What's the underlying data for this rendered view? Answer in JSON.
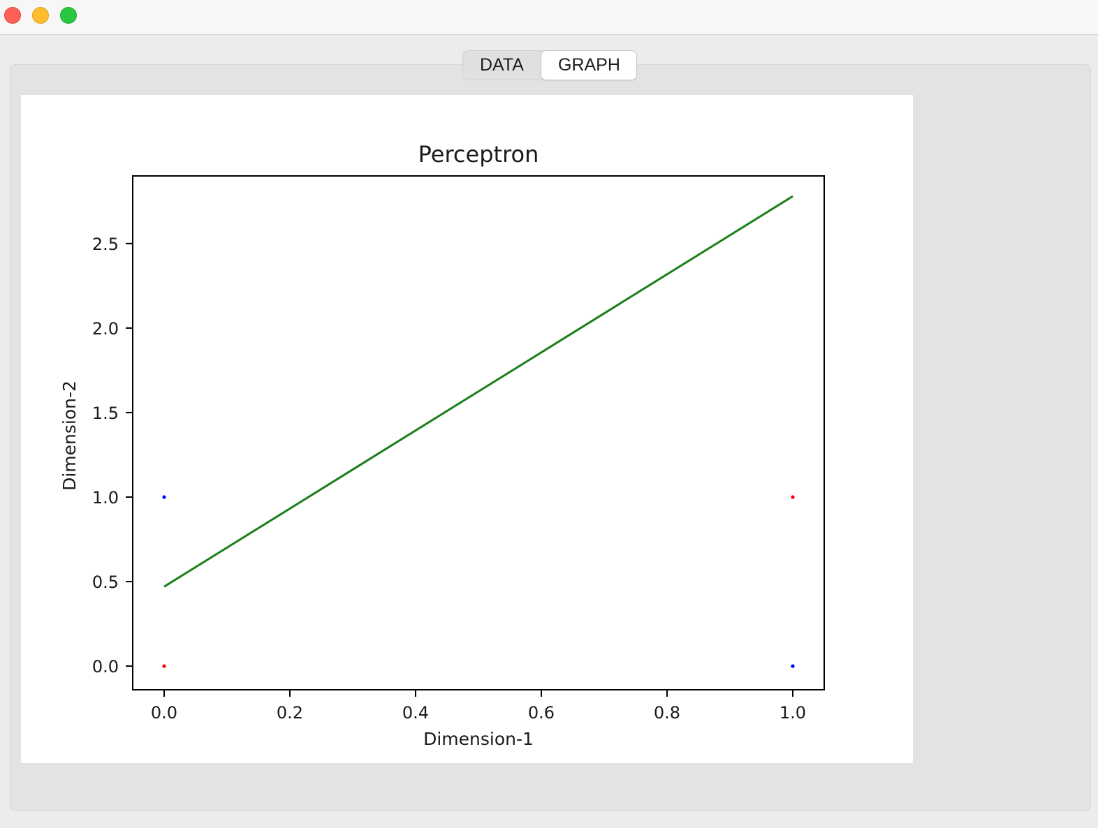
{
  "window": {
    "controls": [
      "close-button",
      "minimize-button",
      "zoom-button"
    ]
  },
  "tabs": [
    {
      "label": "DATA",
      "selected": false
    },
    {
      "label": "GRAPH",
      "selected": true
    }
  ],
  "chart_data": {
    "type": "scatter",
    "title": "Perceptron",
    "xlabel": "Dimension-1",
    "ylabel": "Dimension-2",
    "xlim": [
      -0.05,
      1.05
    ],
    "ylim": [
      -0.14,
      2.9
    ],
    "xticks": [
      "0.0",
      "0.2",
      "0.4",
      "0.6",
      "0.8",
      "1.0"
    ],
    "yticks": [
      "0.0",
      "0.5",
      "1.0",
      "1.5",
      "2.0",
      "2.5"
    ],
    "grid": false,
    "points": [
      {
        "x": 0,
        "y": 1,
        "color": "#0000ff"
      },
      {
        "x": 1,
        "y": 1,
        "color": "#ff0000"
      },
      {
        "x": 0,
        "y": 0,
        "color": "#ff0000"
      },
      {
        "x": 1,
        "y": 0,
        "color": "#0000ff"
      }
    ],
    "line": {
      "color": "#1a7f1a",
      "points": [
        {
          "x": 0,
          "y": 0.47
        },
        {
          "x": 1,
          "y": 2.78
        }
      ]
    }
  }
}
